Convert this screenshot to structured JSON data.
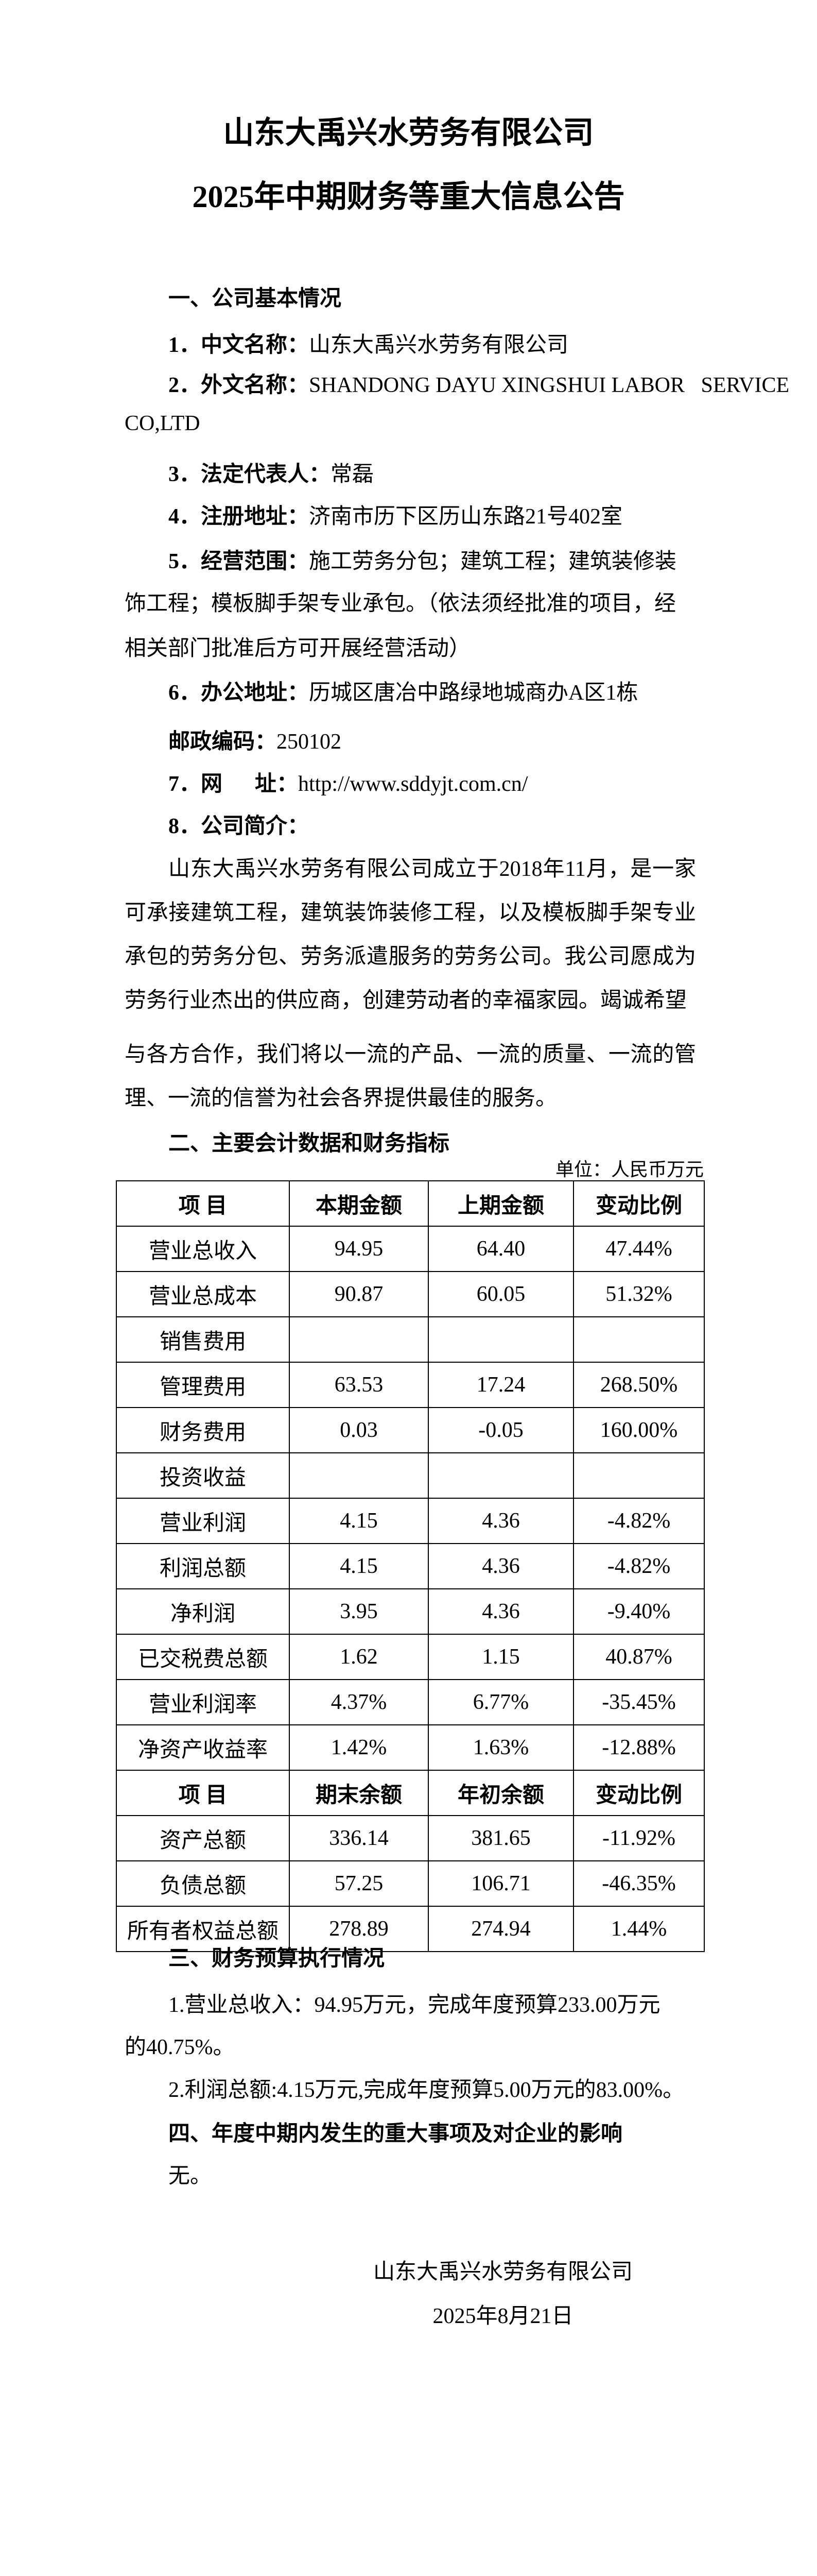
{
  "title": {
    "line1": "山东大禹兴水劳务有限公司",
    "line2": "2025年中期财务等重大信息公告"
  },
  "section1": {
    "heading": "一、公司基本情况",
    "items": [
      {
        "label": "1．中文名称：",
        "value": "山东大禹兴水劳务有限公司"
      },
      {
        "label": "2．外文名称：",
        "value": "SHANDONG DAYU XINGSHUI LABOR   SERVICE",
        "continuation": "CO,LTD"
      },
      {
        "label": "3．法定代表人：",
        "value": "常磊"
      },
      {
        "label": "4．注册地址：",
        "value": "济南市历下区历山东路21号402室"
      },
      {
        "label": "5．经营范围：",
        "value": "施工劳务分包；建筑工程；建筑装修装",
        "continuation": "饰工程；模板脚手架专业承包。（依法须经批准的项目，经",
        "continuation2": "相关部门批准后方可开展经营活动）"
      },
      {
        "label": "6．办公地址：",
        "value": "历城区唐冶中路绿地城商办A区1栋"
      },
      {
        "label": "邮政编码：",
        "value": "250102"
      },
      {
        "label": "7．网      址：",
        "value": "http://www.sddyjt.com.cn/"
      },
      {
        "label": "8．公司简介：",
        "value": ""
      }
    ],
    "intro_part1": "山东大禹兴水劳务有限公司成立于2018年11月，是一家可承接建筑工程，建筑装饰装修工程，以及模板脚手架专业承包的劳务分包、劳务派遣服务的劳务公司。我公司愿成为劳务行业杰出的供应商，创建劳动者的幸福家园。竭诚希望",
    "intro_part2": "与各方合作，我们将以一流的产品、一流的质量、一流的管理、一流的信誉为社会各界提供最佳的服务。"
  },
  "section2": {
    "heading": "二、主要会计数据和财务指标",
    "unit": "单位：人民币万元",
    "table": {
      "header1": [
        "项  目",
        "本期金额",
        "上期金额",
        "变动比例"
      ],
      "rows1": [
        [
          "营业总收入",
          "94.95",
          "64.40",
          "47.44%"
        ],
        [
          "营业总成本",
          "90.87",
          "60.05",
          "51.32%"
        ],
        [
          "销售费用",
          "",
          "",
          ""
        ],
        [
          "管理费用",
          "63.53",
          "17.24",
          "268.50%"
        ],
        [
          "财务费用",
          "0.03",
          "-0.05",
          "160.00%"
        ],
        [
          "投资收益",
          "",
          "",
          ""
        ],
        [
          "营业利润",
          "4.15",
          "4.36",
          "-4.82%"
        ],
        [
          "利润总额",
          "4.15",
          "4.36",
          "-4.82%"
        ],
        [
          "净利润",
          "3.95",
          "4.36",
          "-9.40%"
        ],
        [
          "已交税费总额",
          "1.62",
          "1.15",
          "40.87%"
        ],
        [
          "营业利润率",
          "4.37%",
          "6.77%",
          "-35.45%"
        ],
        [
          "净资产收益率",
          "1.42%",
          "1.63%",
          "-12.88%"
        ]
      ],
      "header2": [
        "项  目",
        "期末余额",
        "年初余额",
        "变动比例"
      ],
      "rows2": [
        [
          "资产总额",
          "336.14",
          "381.65",
          "-11.92%"
        ],
        [
          "负债总额",
          "57.25",
          "106.71",
          "-46.35%"
        ],
        [
          "所有者权益总额",
          "278.89",
          "274.94",
          "1.44%"
        ]
      ]
    }
  },
  "section3": {
    "heading": "三、财务预算执行情况",
    "item1_line1": "1.营业总收入：94.95万元，完成年度预算233.00万元",
    "item1_line2": "的40.75%。",
    "item2": "2.利润总额:4.15万元,完成年度预算5.00万元的83.00%。"
  },
  "section4": {
    "heading": "四、年度中期内发生的重大事项及对企业的影响",
    "body": "无。"
  },
  "signature": {
    "company": "山东大禹兴水劳务有限公司",
    "date": "2025年8月21日"
  }
}
